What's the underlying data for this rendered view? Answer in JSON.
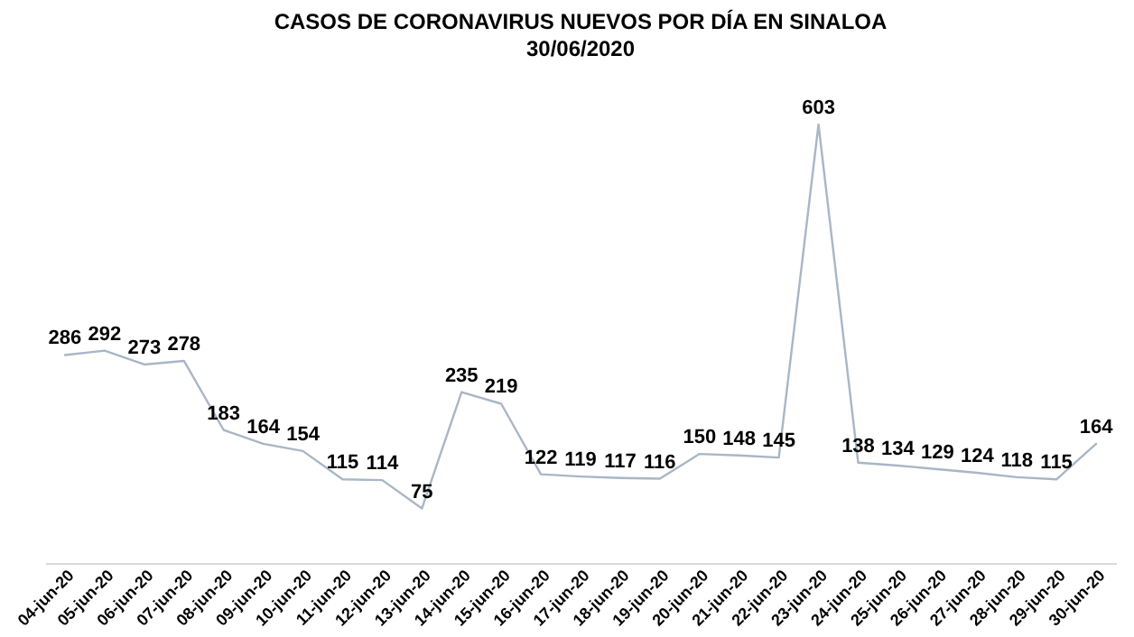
{
  "chart_data": {
    "type": "line",
    "title": "CASOS DE CORONAVIRUS NUEVOS POR DÍA EN SINALOA",
    "subtitle": "30/06/2020",
    "categories": [
      "04-jun-20",
      "05-jun-20",
      "06-jun-20",
      "07-jun-20",
      "08-jun-20",
      "09-jun-20",
      "10-jun-20",
      "11-jun-20",
      "12-jun-20",
      "13-jun-20",
      "14-jun-20",
      "15-jun-20",
      "16-jun-20",
      "17-jun-20",
      "18-jun-20",
      "19-jun-20",
      "20-jun-20",
      "21-jun-20",
      "22-jun-20",
      "23-jun-20",
      "24-jun-20",
      "25-jun-20",
      "26-jun-20",
      "27-jun-20",
      "28-jun-20",
      "29-jun-20",
      "30-jun-20"
    ],
    "values": [
      286,
      292,
      273,
      278,
      183,
      164,
      154,
      115,
      114,
      75,
      235,
      219,
      122,
      119,
      117,
      116,
      150,
      148,
      145,
      603,
      138,
      134,
      129,
      124,
      118,
      115,
      164
    ],
    "color": "#a9b6c6",
    "data_labels": true
  }
}
